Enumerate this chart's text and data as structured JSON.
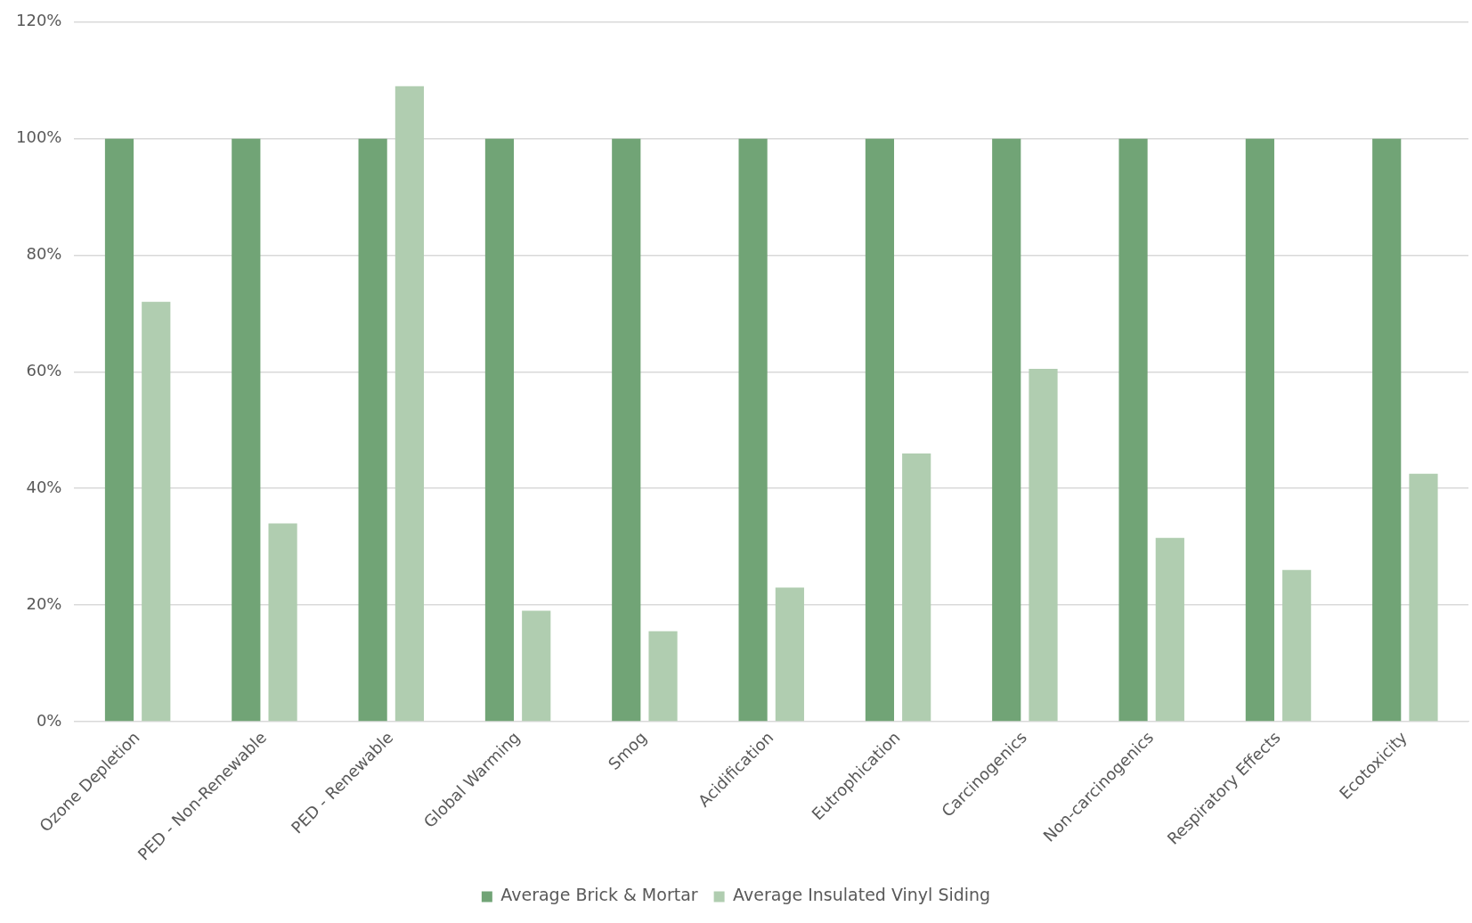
{
  "chart_data": {
    "type": "bar",
    "categories": [
      "Ozone Depletion",
      "PED - Non-Renewable",
      "PED - Renewable",
      "Global Warming",
      "Smog",
      "Acidification",
      "Eutrophication",
      "Carcinogenics",
      "Non-carcinogenics",
      "Respiratory Effects",
      "Ecotoxicity"
    ],
    "series": [
      {
        "name": "Average Brick & Mortar",
        "color": "#71a476",
        "values": [
          100,
          100,
          100,
          100,
          100,
          100,
          100,
          100,
          100,
          100,
          100
        ]
      },
      {
        "name": "Average Insulated Vinyl Siding",
        "color": "#b0cdb0",
        "values": [
          72,
          34,
          109,
          19,
          15.5,
          23,
          46,
          60.5,
          31.5,
          26,
          42.5
        ]
      }
    ],
    "ylim": [
      0,
      120
    ],
    "yticks": [
      {
        "value": 0,
        "label": "0%"
      },
      {
        "value": 20,
        "label": "20%"
      },
      {
        "value": 40,
        "label": "40%"
      },
      {
        "value": 60,
        "label": "60%"
      },
      {
        "value": 80,
        "label": "80%"
      },
      {
        "value": 100,
        "label": "100%"
      },
      {
        "value": 120,
        "label": "120%"
      }
    ],
    "grid": "y",
    "legend": "bottom"
  }
}
